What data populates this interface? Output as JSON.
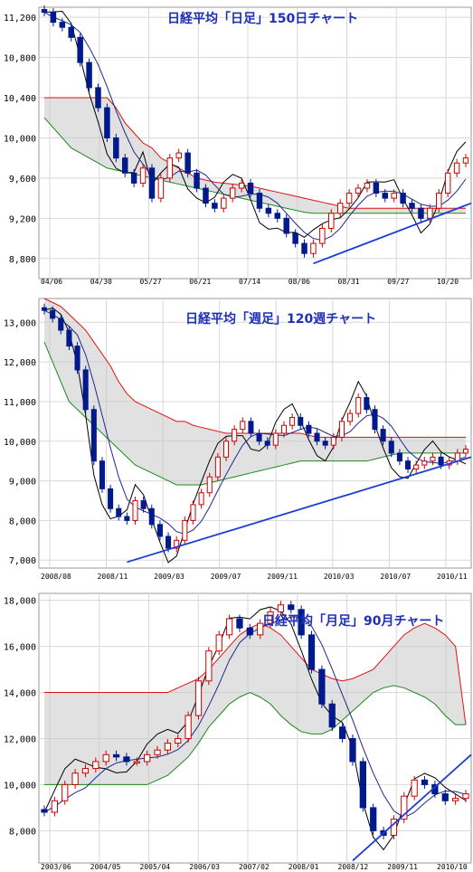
{
  "chart_data": [
    {
      "type": "candlestick",
      "title": "日経平均「日足」150日チャート",
      "yticks": [
        "11,200",
        "10,800",
        "10,400",
        "10,000",
        "9,600",
        "9,200",
        "8,800"
      ],
      "ytick_values": [
        11200,
        10800,
        10400,
        10000,
        9600,
        9200,
        8800
      ],
      "ylim": [
        8600,
        11300
      ],
      "xticks": [
        "04/06",
        "04/30",
        "05/27",
        "06/21",
        "07/14",
        "08/06",
        "08/31",
        "09/27",
        "10/20"
      ],
      "close_trend": [
        11250,
        11150,
        11100,
        11000,
        10750,
        10500,
        10300,
        10000,
        9800,
        9650,
        9550,
        9700,
        9400,
        9600,
        9800,
        9850,
        9650,
        9500,
        9350,
        9300,
        9400,
        9500,
        9550,
        9450,
        9300,
        9250,
        9200,
        9050,
        8950,
        8850,
        8950,
        9100,
        9250,
        9350,
        9450,
        9500,
        9550,
        9450,
        9400,
        9450,
        9350,
        9300,
        9200,
        9300,
        9450,
        9650,
        9750,
        9800
      ],
      "trendline": {
        "start_index": 30,
        "start_value": 8750,
        "end_value": 9350
      },
      "cloud_top": [
        10400,
        10400,
        10400,
        10400,
        10400,
        10400,
        10400,
        10400,
        10300,
        10150,
        10050,
        9950,
        9900,
        9800,
        9750,
        9700,
        9650,
        9600,
        9580,
        9560,
        9550,
        9540,
        9530,
        9520,
        9500,
        9480,
        9460,
        9440,
        9420,
        9400,
        9380,
        9360,
        9340,
        9320,
        9300,
        9300,
        9300,
        9300,
        9300,
        9300,
        9300,
        9300,
        9300,
        9300,
        9300,
        9300,
        9300,
        9300
      ],
      "cloud_bottom": [
        10200,
        10100,
        10000,
        9900,
        9850,
        9800,
        9750,
        9700,
        9680,
        9660,
        9640,
        9620,
        9600,
        9580,
        9560,
        9540,
        9520,
        9500,
        9480,
        9460,
        9440,
        9420,
        9400,
        9380,
        9360,
        9340,
        9320,
        9300,
        9280,
        9260,
        9250,
        9250,
        9250,
        9250,
        9250,
        9250,
        9250,
        9250,
        9250,
        9250,
        9250,
        9250,
        9250,
        9250,
        9250,
        9250,
        9250,
        9250
      ]
    },
    {
      "type": "candlestick",
      "title": "日経平均「週足」120週チャート",
      "yticks": [
        "13,000",
        "12,000",
        "11,000",
        "10,000",
        "9,000",
        "8,000",
        "7,000"
      ],
      "ytick_values": [
        13000,
        12000,
        11000,
        10000,
        9000,
        8000,
        7000
      ],
      "ylim": [
        6800,
        13600
      ],
      "xticks": [
        "2008/08",
        "2008/11",
        "2009/03",
        "2009/07",
        "2009/11",
        "2010/03",
        "2010/07",
        "2010/11"
      ],
      "close_trend": [
        13300,
        13100,
        12800,
        12400,
        11800,
        10800,
        9500,
        8800,
        8300,
        8100,
        8000,
        8500,
        8300,
        7900,
        7600,
        7300,
        7500,
        8000,
        8400,
        8700,
        9100,
        9600,
        10000,
        10300,
        10500,
        10200,
        10000,
        9900,
        10200,
        10400,
        10600,
        10400,
        10200,
        10000,
        9900,
        10100,
        10500,
        10700,
        11100,
        10800,
        10300,
        10000,
        9700,
        9500,
        9300,
        9400,
        9500,
        9600,
        9400,
        9500,
        9700,
        9800
      ],
      "trendline": {
        "start_index": 10,
        "start_value": 6950,
        "end_value": 9600
      },
      "cloud_top": [
        13600,
        13500,
        13400,
        13200,
        13000,
        12800,
        12500,
        12200,
        11900,
        11500,
        11200,
        11000,
        10900,
        10800,
        10700,
        10600,
        10500,
        10500,
        10400,
        10350,
        10300,
        10250,
        10200,
        10200,
        10200,
        10200,
        10200,
        10200,
        10200,
        10200,
        10200,
        10200,
        10150,
        10100,
        10100,
        10100,
        10100,
        10100,
        10100,
        10100,
        10100,
        10100,
        10100,
        10100,
        10100,
        10100,
        10100,
        10100,
        10100,
        10100,
        10100,
        10100
      ],
      "cloud_bottom": [
        12500,
        12000,
        11500,
        11000,
        10800,
        10600,
        10400,
        10200,
        10000,
        9800,
        9600,
        9400,
        9300,
        9200,
        9100,
        9000,
        8900,
        8900,
        8900,
        8900,
        8950,
        9000,
        9050,
        9100,
        9150,
        9200,
        9250,
        9300,
        9350,
        9400,
        9450,
        9500,
        9500,
        9500,
        9500,
        9500,
        9500,
        9500,
        9500,
        9500,
        9550,
        9600,
        9650,
        9700,
        9700,
        9700,
        9700,
        9700,
        9700,
        9700,
        9700,
        9700
      ]
    },
    {
      "type": "candlestick",
      "title": "日経平均「月足」90月チャート",
      "yticks": [
        "18,000",
        "16,000",
        "14,000",
        "12,000",
        "10,000",
        "8,000"
      ],
      "ytick_values": [
        18000,
        16000,
        14000,
        12000,
        10000,
        8000
      ],
      "ylim": [
        6600,
        18300
      ],
      "xticks": [
        "2003/06",
        "2004/05",
        "2005/04",
        "2006/03",
        "2007/02",
        "2008/01",
        "2008/12",
        "2009/11",
        "2010/10"
      ],
      "close_trend": [
        8800,
        9300,
        10000,
        10500,
        10700,
        11000,
        11300,
        11200,
        11000,
        11000,
        11300,
        11500,
        11800,
        12000,
        13000,
        14500,
        15800,
        16500,
        17200,
        16800,
        16500,
        17000,
        17500,
        17800,
        17600,
        16500,
        15000,
        13500,
        12500,
        12000,
        11000,
        9000,
        8000,
        7800,
        8500,
        9500,
        10200,
        10000,
        9600,
        9300,
        9400,
        9600
      ],
      "trendline": {
        "start_index": 30,
        "start_value": 6700,
        "end_value": 11300
      },
      "cloud_top": [
        14000,
        14000,
        14000,
        14000,
        14000,
        14000,
        14000,
        14000,
        14000,
        14000,
        14000,
        14000,
        14000,
        14200,
        14400,
        14600,
        15000,
        15500,
        16000,
        16500,
        16800,
        17000,
        16800,
        16500,
        16000,
        15500,
        15000,
        14800,
        14600,
        14500,
        14600,
        14800,
        15000,
        15500,
        16000,
        16500,
        16800,
        17000,
        16800,
        16500,
        16000,
        12600
      ],
      "cloud_bottom": [
        10000,
        10000,
        10000,
        10000,
        10000,
        10000,
        10000,
        10000,
        10000,
        10000,
        10000,
        10200,
        10400,
        10800,
        11200,
        11800,
        12500,
        13000,
        13500,
        13800,
        14000,
        13800,
        13500,
        13000,
        12600,
        12300,
        12200,
        12200,
        12400,
        12800,
        13200,
        13600,
        14000,
        14200,
        14300,
        14200,
        14000,
        13800,
        13500,
        13000,
        12600,
        12600
      ]
    }
  ]
}
